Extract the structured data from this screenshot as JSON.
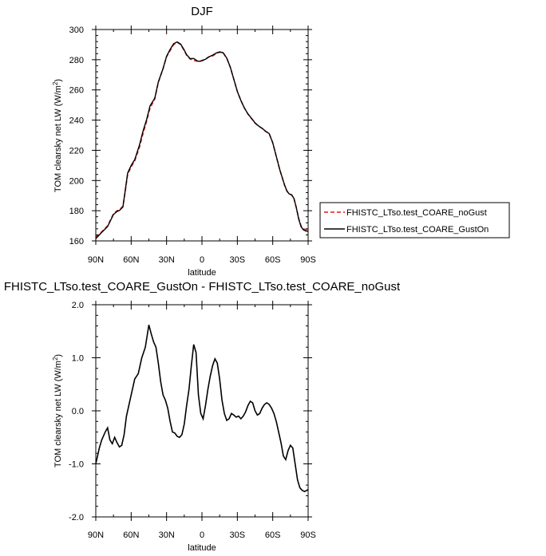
{
  "chart_data": [
    {
      "type": "line",
      "title": "DJF",
      "xlabel": "latitude",
      "ylabel": "TOM clearsky net LW (W/m",
      "ylabel_sup": "2",
      "ylabel_close": ")",
      "xlim": [
        -90,
        90
      ],
      "ylim": [
        160,
        300
      ],
      "x_ticks": [
        -90,
        -60,
        -30,
        0,
        30,
        60,
        90
      ],
      "x_tick_labels": [
        "90N",
        "60N",
        "30N",
        "0",
        "30S",
        "60S",
        "90S"
      ],
      "y_ticks": [
        160,
        180,
        200,
        220,
        240,
        260,
        280,
        300
      ],
      "y_tick_labels": [
        "160",
        "180",
        "200",
        "220",
        "240",
        "260",
        "280",
        "300"
      ],
      "legend_position": "right",
      "series": [
        {
          "name": "FHISTC_LTso.test_COARE_noGust",
          "color": "#e31a1c",
          "dash": "dashed",
          "x": [
            -90,
            -85,
            -80,
            -75,
            -72,
            -70,
            -67,
            -65,
            -63,
            -60,
            -57,
            -53,
            -50,
            -47,
            -44,
            -40,
            -37,
            -33,
            -30,
            -27,
            -24,
            -21,
            -18,
            -15,
            -13,
            -10,
            -7,
            -4,
            -2,
            0,
            3,
            6,
            9,
            12,
            15,
            18,
            21,
            24,
            27,
            30,
            33,
            36,
            39,
            42,
            45,
            48,
            51,
            54,
            57,
            60,
            63,
            66,
            68,
            70,
            72,
            74,
            76,
            78,
            80,
            82,
            84,
            86,
            88,
            90
          ],
          "y": [
            162.5,
            166,
            170,
            178,
            180,
            180.5,
            183,
            193,
            204,
            209,
            213,
            222,
            231,
            239,
            248,
            254,
            265,
            274,
            282,
            286,
            290,
            291.5,
            290,
            286,
            283,
            280.5,
            279.5,
            279,
            279,
            279.5,
            280.5,
            282,
            282.5,
            284,
            285,
            284.5,
            281,
            275,
            267,
            259,
            253,
            248,
            244,
            241,
            238,
            236,
            234.5,
            232.5,
            231,
            225,
            216,
            207,
            202,
            197,
            193,
            191,
            190.5,
            188,
            182,
            175,
            170,
            168,
            167.5,
            167.5
          ]
        },
        {
          "name": "FHISTC_LTso.test_COARE_GustOn",
          "color": "#000000",
          "dash": "solid",
          "x": [
            -90,
            -85,
            -80,
            -75,
            -72,
            -70,
            -67,
            -65,
            -63,
            -60,
            -57,
            -53,
            -50,
            -47,
            -44,
            -40,
            -37,
            -33,
            -30,
            -27,
            -24,
            -21,
            -18,
            -15,
            -13,
            -10,
            -7,
            -4,
            -2,
            0,
            3,
            6,
            9,
            12,
            15,
            18,
            21,
            24,
            27,
            30,
            33,
            36,
            39,
            42,
            45,
            48,
            51,
            54,
            57,
            60,
            63,
            66,
            68,
            70,
            72,
            74,
            76,
            78,
            80,
            82,
            84,
            86,
            88,
            90
          ],
          "y": [
            161.5,
            165.6,
            169.5,
            177.5,
            179.5,
            180.1,
            182.5,
            193.6,
            204.9,
            210,
            213.8,
            223.4,
            232.6,
            240.1,
            249.5,
            254.5,
            265.2,
            274.1,
            282.3,
            286.8,
            290.6,
            291.8,
            290.3,
            286.4,
            283.3,
            280.7,
            280.8,
            279.2,
            278.9,
            279.3,
            280.3,
            281.9,
            283,
            284.4,
            285.2,
            284.6,
            281.1,
            275.2,
            267.1,
            259,
            253,
            248,
            244.1,
            241.2,
            238.2,
            236.1,
            234.6,
            232.6,
            231.1,
            225,
            216,
            207.1,
            202.1,
            197.1,
            193.1,
            191.1,
            190.6,
            188.1,
            182,
            174.5,
            169.4,
            167.3,
            166.6,
            166.4
          ]
        }
      ]
    },
    {
      "type": "line",
      "title": "FHISTC_LTso.test_COARE_GustOn - FHISTC_LTso.test_COARE_noGust",
      "xlabel": "latitude",
      "ylabel": "TOM clearsky net LW (W/m",
      "ylabel_sup": "2",
      "ylabel_close": ")",
      "xlim": [
        -90,
        90
      ],
      "ylim": [
        -2.0,
        2.0
      ],
      "x_ticks": [
        -90,
        -60,
        -30,
        0,
        30,
        60,
        90
      ],
      "x_tick_labels": [
        "90N",
        "60N",
        "30N",
        "0",
        "30S",
        "60S",
        "90S"
      ],
      "y_ticks": [
        -2.0,
        -1.0,
        0.0,
        1.0,
        2.0
      ],
      "y_tick_labels": [
        "-2.0",
        "-1.0",
        "0.0",
        "1.0",
        "2.0"
      ],
      "series": [
        {
          "color": "#000000",
          "dash": "solid",
          "x": [
            -90,
            -87,
            -85,
            -82,
            -80,
            -78,
            -76,
            -74,
            -72,
            -70,
            -68,
            -66,
            -64,
            -62,
            -60,
            -57,
            -54,
            -51,
            -48,
            -45,
            -43,
            -41,
            -39,
            -37,
            -35,
            -33,
            -31,
            -29,
            -27,
            -25,
            -23,
            -21,
            -19,
            -17,
            -15,
            -13,
            -11,
            -9,
            -7,
            -5,
            -3,
            -1,
            1,
            3,
            5,
            7,
            9,
            11,
            13,
            15,
            17,
            19,
            21,
            23,
            25,
            27,
            29,
            31,
            33,
            35,
            37,
            39,
            41,
            43,
            45,
            47,
            49,
            51,
            53,
            55,
            57,
            59,
            61,
            63,
            65,
            67,
            69,
            71,
            73,
            75,
            77,
            79,
            81,
            83,
            85,
            87,
            89,
            90
          ],
          "y": [
            -1.0,
            -0.7,
            -0.55,
            -0.4,
            -0.32,
            -0.55,
            -0.62,
            -0.5,
            -0.6,
            -0.68,
            -0.65,
            -0.45,
            -0.1,
            0.1,
            0.3,
            0.6,
            0.7,
            1.0,
            1.2,
            1.62,
            1.45,
            1.3,
            1.2,
            0.9,
            0.55,
            0.3,
            0.2,
            0.05,
            -0.2,
            -0.4,
            -0.42,
            -0.48,
            -0.5,
            -0.45,
            -0.25,
            0.1,
            0.4,
            0.85,
            1.25,
            1.1,
            0.3,
            -0.05,
            -0.15,
            0.1,
            0.4,
            0.65,
            0.85,
            0.98,
            0.9,
            0.6,
            0.2,
            -0.05,
            -0.18,
            -0.15,
            -0.05,
            -0.08,
            -0.12,
            -0.1,
            -0.15,
            -0.1,
            -0.02,
            0.1,
            0.18,
            0.15,
            0.0,
            -0.08,
            -0.05,
            0.05,
            0.12,
            0.15,
            0.12,
            0.05,
            -0.05,
            -0.2,
            -0.4,
            -0.6,
            -0.85,
            -0.92,
            -0.75,
            -0.65,
            -0.7,
            -1.0,
            -1.3,
            -1.45,
            -1.5,
            -1.52,
            -1.5,
            -1.48
          ]
        }
      ]
    }
  ]
}
